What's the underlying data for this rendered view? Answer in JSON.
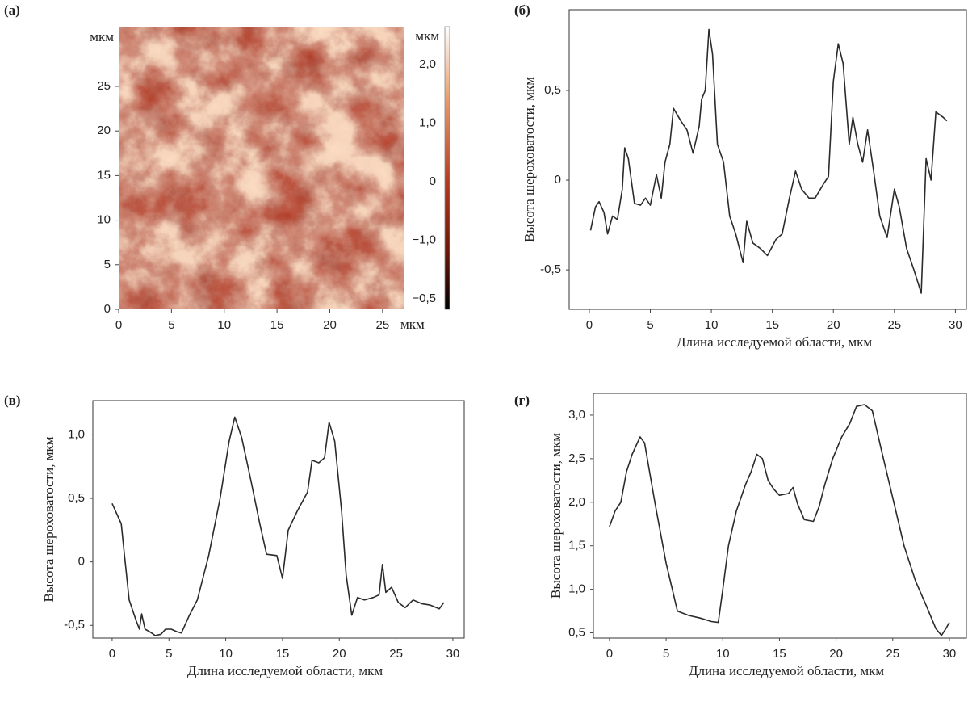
{
  "chart_data": [
    {
      "type": "heatmap",
      "panel": "(а)",
      "xlabel": "мкм",
      "ylabel": "мкм",
      "colorbar_label": "мкм",
      "xlim": [
        0,
        27
      ],
      "ylim": [
        0,
        31.7
      ],
      "xticks": [
        0,
        5,
        10,
        15,
        20,
        25
      ],
      "yticks": [
        0,
        5,
        10,
        15,
        20,
        25
      ],
      "colorbar_labels": [
        "2,0",
        "1,0",
        "0",
        "−1,0",
        "−0,5"
      ]
    },
    {
      "type": "line",
      "panel": "(б)",
      "xlabel": "Длина исследуемой области, мкм",
      "ylabel": "Высота шероховатости, мкм",
      "color": "#2b2b2b",
      "xlim": [
        -1.65,
        30.9
      ],
      "ylim": [
        -0.72,
        0.95
      ],
      "xticks": [
        0,
        5,
        10,
        15,
        20,
        25,
        30
      ],
      "yticks": [
        {
          "value": 0.5,
          "label": "0,5"
        },
        0,
        {
          "value": -0.5,
          "label": "-0,5"
        }
      ],
      "x": [
        0.1,
        0.5,
        0.8,
        1.2,
        1.5,
        1.9,
        2.3,
        2.7,
        2.9,
        3.2,
        3.7,
        4.2,
        4.6,
        5.0,
        5.5,
        5.9,
        6.2,
        6.6,
        6.9,
        7.5,
        8.0,
        8.5,
        9.0,
        9.2,
        9.5,
        9.8,
        10.1,
        10.5,
        11.0,
        11.5,
        12.0,
        12.6,
        12.9,
        13.4,
        14.0,
        14.6,
        15.3,
        15.8,
        16.4,
        16.9,
        17.4,
        18.0,
        18.5,
        19.2,
        19.6,
        20.0,
        20.4,
        20.8,
        21.3,
        21.6,
        22.0,
        22.4,
        22.8,
        23.3,
        23.8,
        24.4,
        25.0,
        25.4,
        26.0,
        26.6,
        27.2,
        27.6,
        28.0,
        28.4,
        29.0,
        29.3
      ],
      "values": [
        -0.28,
        -0.15,
        -0.12,
        -0.18,
        -0.3,
        -0.2,
        -0.22,
        -0.05,
        0.18,
        0.12,
        -0.13,
        -0.14,
        -0.1,
        -0.14,
        0.03,
        -0.1,
        0.1,
        0.2,
        0.4,
        0.33,
        0.28,
        0.15,
        0.3,
        0.45,
        0.5,
        0.84,
        0.7,
        0.2,
        0.1,
        -0.2,
        -0.3,
        -0.46,
        -0.23,
        -0.35,
        -0.38,
        -0.42,
        -0.33,
        -0.3,
        -0.1,
        0.05,
        -0.05,
        -0.1,
        -0.1,
        -0.02,
        0.02,
        0.55,
        0.76,
        0.65,
        0.2,
        0.35,
        0.2,
        0.1,
        0.28,
        0.05,
        -0.2,
        -0.32,
        -0.05,
        -0.15,
        -0.38,
        -0.5,
        -0.63,
        0.12,
        0.0,
        0.38,
        0.35,
        0.33
      ]
    },
    {
      "type": "line",
      "panel": "(в)",
      "xlabel": "Длина исследуемой области, мкм",
      "ylabel": "Высота шероховатости, мкм",
      "color": "#2b2b2b",
      "xlim": [
        -1.7,
        31.0
      ],
      "ylim": [
        -0.6,
        1.27
      ],
      "xticks": [
        0,
        5,
        10,
        15,
        20,
        25,
        30
      ],
      "yticks": [
        {
          "value": 1.0,
          "label": "1,0"
        },
        {
          "value": 0.5,
          "label": "0,5"
        },
        0,
        {
          "value": -0.5,
          "label": "-0,5"
        }
      ],
      "x": [
        0,
        0.8,
        1.1,
        1.5,
        2.1,
        2.4,
        2.6,
        2.9,
        3.3,
        3.8,
        4.3,
        4.7,
        5.2,
        5.7,
        6.1,
        6.8,
        7.5,
        8.5,
        9.5,
        10.3,
        10.8,
        11.4,
        12.2,
        13.0,
        13.6,
        14.5,
        15.0,
        15.5,
        16.3,
        17.2,
        17.6,
        18.2,
        18.7,
        19.1,
        19.6,
        20.2,
        20.6,
        21.1,
        21.6,
        22.2,
        23.0,
        23.5,
        23.8,
        24.1,
        24.6,
        25.2,
        25.8,
        26.5,
        27.3,
        28.0,
        28.8,
        29.2
      ],
      "values": [
        0.46,
        0.3,
        0.04,
        -0.3,
        -0.46,
        -0.53,
        -0.41,
        -0.53,
        -0.55,
        -0.58,
        -0.57,
        -0.53,
        -0.53,
        -0.55,
        -0.56,
        -0.42,
        -0.3,
        0.05,
        0.5,
        0.95,
        1.14,
        0.98,
        0.65,
        0.3,
        0.06,
        0.05,
        -0.13,
        0.25,
        0.4,
        0.55,
        0.8,
        0.78,
        0.82,
        1.1,
        0.95,
        0.4,
        -0.1,
        -0.42,
        -0.28,
        -0.3,
        -0.28,
        -0.26,
        -0.02,
        -0.24,
        -0.2,
        -0.32,
        -0.36,
        -0.3,
        -0.33,
        -0.34,
        -0.37,
        -0.32
      ]
    },
    {
      "type": "line",
      "panel": "(г)",
      "xlabel": "Длина исследуемой области, мкм",
      "ylabel": "Высота шероховатости, мкм",
      "color": "#2b2b2b",
      "xlim": [
        -1.42,
        31.5
      ],
      "ylim": [
        0.44,
        3.25
      ],
      "xticks": [
        0,
        5,
        10,
        15,
        20,
        25,
        30
      ],
      "yticks": [
        {
          "value": 3.0,
          "label": "3,0"
        },
        {
          "value": 2.5,
          "label": "2,5"
        },
        {
          "value": 2.0,
          "label": "2,0"
        },
        {
          "value": 1.5,
          "label": "1,5"
        },
        {
          "value": 1.0,
          "label": "1,0"
        },
        {
          "value": 0.5,
          "label": "0,5"
        }
      ],
      "x": [
        0.0,
        0.5,
        1.0,
        1.5,
        2.0,
        2.7,
        3.1,
        4.0,
        5.0,
        6.0,
        7.0,
        8.0,
        9.0,
        9.6,
        10.0,
        10.5,
        11.2,
        12.0,
        12.5,
        13.0,
        13.5,
        14.0,
        14.5,
        15.0,
        15.8,
        16.2,
        16.6,
        17.2,
        18.0,
        18.5,
        19.0,
        19.7,
        20.5,
        21.2,
        21.8,
        22.5,
        23.2,
        24.0,
        25.0,
        26.0,
        27.0,
        28.0,
        28.8,
        29.3,
        29.7,
        30.0
      ],
      "values": [
        1.72,
        1.9,
        2.0,
        2.35,
        2.55,
        2.75,
        2.68,
        2.0,
        1.3,
        0.75,
        0.7,
        0.67,
        0.63,
        0.62,
        1.0,
        1.5,
        1.9,
        2.2,
        2.35,
        2.55,
        2.5,
        2.25,
        2.15,
        2.08,
        2.1,
        2.17,
        1.98,
        1.8,
        1.78,
        1.95,
        2.2,
        2.5,
        2.75,
        2.9,
        3.1,
        3.12,
        3.05,
        2.6,
        2.05,
        1.5,
        1.1,
        0.8,
        0.55,
        0.47,
        0.55,
        0.62
      ]
    }
  ]
}
